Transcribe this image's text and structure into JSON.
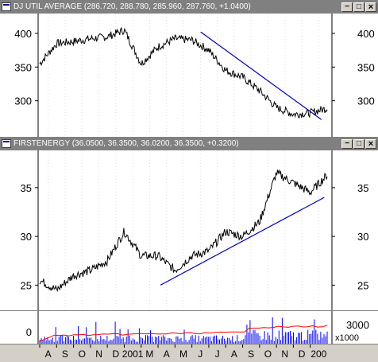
{
  "panes": {
    "util": {
      "title": "DJ UTIL AVERAGE",
      "ohlc": "(286.720, 288.780, 285.960, 287.760, +1.0400)",
      "y_ticks": [
        {
          "label": "400",
          "value": 400
        },
        {
          "label": "350",
          "value": 350
        },
        {
          "label": "300",
          "value": 300
        }
      ],
      "line_color": "#000000",
      "trendline_color": "#0000cc"
    },
    "energy": {
      "title": "FIRSTENERGY",
      "ohlc": "(36.0500, 36.3500, 36.0200, 36.3500, +0.3200)",
      "y_ticks": [
        {
          "label": "35",
          "value": 35
        },
        {
          "label": "30",
          "value": 30
        },
        {
          "label": "25",
          "value": 25
        }
      ],
      "line_color": "#000000",
      "trendline_color": "#0000cc"
    },
    "volume": {
      "left_tick": "0",
      "right_tick": "3000",
      "multiplier": "x1000",
      "bar_color": "#0000ff",
      "avg_color": "#ff0000"
    }
  },
  "window_buttons": {
    "minimize": "−",
    "maximize": "□",
    "close": "×"
  },
  "time_axis": [
    "A",
    "S",
    "O",
    "N",
    "D",
    "2001",
    "M",
    "A",
    "M",
    "J",
    "J",
    "A",
    "S",
    "O",
    "N",
    "D",
    "200"
  ],
  "chart_data": {
    "type": "line",
    "x": [
      "Aug 2000",
      "Sep",
      "Oct",
      "Nov",
      "Dec",
      "Jan 2001",
      "Feb",
      "Mar",
      "Apr",
      "May",
      "Jun",
      "Jul",
      "Aug",
      "Sep",
      "Oct",
      "Nov",
      "Dec",
      "Jan 2002"
    ],
    "series": [
      {
        "values": [
          355,
          385,
          388,
          392,
          395,
          405,
          355,
          380,
          392,
          390,
          375,
          345,
          335,
          315,
          290,
          280,
          282,
          289
        ]
      },
      {
        "values": [
          25.5,
          24.5,
          26,
          26.5,
          27.5,
          30.5,
          28,
          28,
          26.5,
          28,
          28.5,
          30.5,
          30,
          31.5,
          36.5,
          35.5,
          34.5,
          36.3
        ]
      }
    ]
  }
}
